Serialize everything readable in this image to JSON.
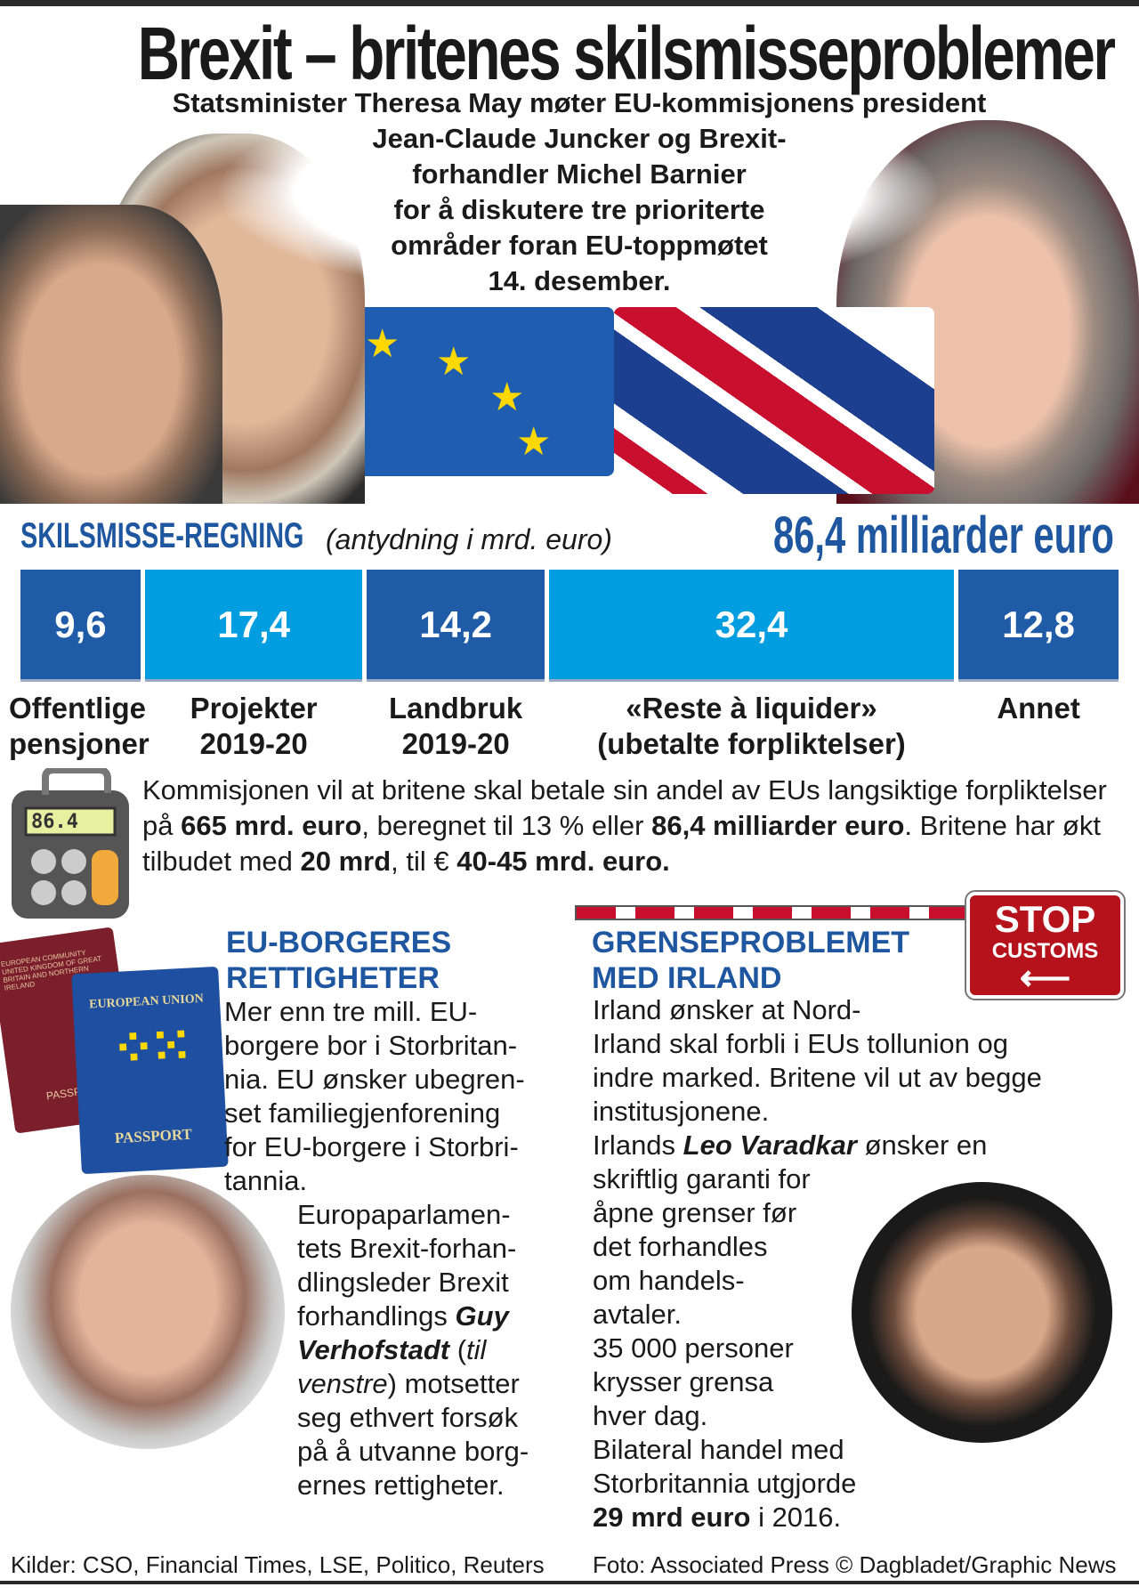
{
  "title": "Brexit – britenes skilsmisseproblemer",
  "subtitle": [
    "Statsminister Theresa May møter EU-kommisjonens president",
    "Jean-Claude Juncker og Brexit-",
    "forhandler Michel Barnier",
    "for å diskutere tre prioriterte",
    "områder foran EU-toppmøtet",
    "14. desember."
  ],
  "bill": {
    "title": "SKILSMISSE-REGNING",
    "note": "(antydning i mrd. euro)",
    "total": "86,4 milliarder euro"
  },
  "chart_data": {
    "type": "bar",
    "title": "SKILSMISSE-REGNING (antydning i mrd. euro)",
    "categories": [
      "Offentlige pensjoner",
      "Projekter 2019-20",
      "Landbruk 2019-20",
      "«Reste à liquider» (ubetalte forpliktelser)",
      "Annet"
    ],
    "values": [
      9.6,
      17.4,
      14.2,
      32.4,
      12.8
    ],
    "value_labels": [
      "9,6",
      "17,4",
      "14,2",
      "32,4",
      "12,8"
    ],
    "label_lines": [
      [
        "Offentlige",
        "pensjoner"
      ],
      [
        "Projekter",
        "2019-20"
      ],
      [
        "Landbruk",
        "2019-20"
      ],
      [
        "«Reste à liquider»",
        "(ubetalte forpliktelser)"
      ],
      [
        "Annet"
      ]
    ],
    "colors": [
      "#1f5ba7",
      "#009ee0",
      "#1f5ba7",
      "#009ee0",
      "#1f5ba7"
    ]
  },
  "calculator_display": "86.4",
  "paragraph": {
    "p1": "Kommisjonen vil at britene skal betale sin andel av EUs langsiktige forpliktelser på ",
    "b1": "665 mrd. euro",
    "p2": ", beregnet til 13 % eller ",
    "b2": "86,4 milliarder euro",
    "p3": ". Britene har økt tilbudet med ",
    "b3": "20 mrd",
    "p4": ", til € ",
    "b4": "40-45 mrd. euro."
  },
  "passport": {
    "uk": "EUROPEAN COMMUNITY UNITED KINGDOM OF GREAT BRITAIN AND NORTHERN IRELAND",
    "uk_word": "PASSPORT",
    "eu": "EUROPEAN UNION",
    "eu_word": "PASSPORT"
  },
  "left": {
    "heading": [
      "EU-BORGERES",
      "RETTIGHETER"
    ],
    "body": [
      "Mer enn tre mill. EU-",
      "borgere bor i Storbritan-",
      "nia. EU ønsker ubegren-",
      "set familiegjenforening",
      "for EU-borgere i Storbri-",
      "tannia."
    ],
    "body2": [
      "Europaparlamen-",
      "tets Brexit-forhan-",
      "dlingsleder Brexit",
      "forhandlings "
    ],
    "name1": "Guy",
    "name2": "Verhofstadt",
    "paren_open": " (",
    "til": "til",
    "venstre": "venstre",
    "paren_close": ") motsetter",
    "rest": [
      "seg ethvert forsøk",
      "på å utvanne borg-",
      "ernes rettigheter."
    ]
  },
  "right": {
    "heading": [
      "GRENSEPROBLEMET",
      "MED IRLAND"
    ],
    "body": [
      "Irland ønsker at Nord-",
      "Irland skal forbli i EUs tollunion og",
      "indre marked. Britene vil ut av begge",
      "institusjonene."
    ],
    "irl": "Irlands ",
    "leo": "Leo Varadkar",
    "wants": " ønsker en",
    "body2": [
      "skriftlig garanti for",
      "åpne grenser før",
      "det forhandles",
      "om handels-",
      "avtaler.",
      "35 000 personer",
      "krysser grensa",
      "hver dag.",
      "Bilateral handel med",
      "Storbritannia utgjorde"
    ],
    "last_bold": "29 mrd euro",
    "last": " i 2016."
  },
  "stop_sign": {
    "line1": "STOP",
    "line2": "CUSTOMS"
  },
  "footer": {
    "sources": "Kilder: CSO, Financial Times, LSE, Politico, Reuters",
    "credit": "Foto: Associated Press  © Dagbladet/Graphic News"
  }
}
